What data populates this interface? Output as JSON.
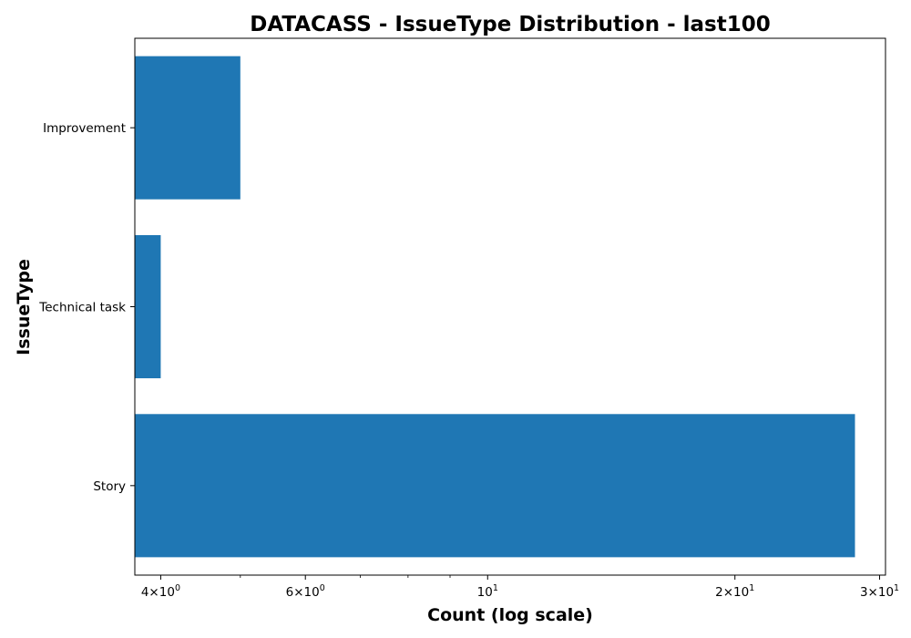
{
  "chart_data": {
    "type": "bar",
    "orientation": "horizontal",
    "title": "DATACASS - IssueType Distribution - last100",
    "xlabel": "Count (log scale)",
    "ylabel": "IssueType",
    "x_scale": "log",
    "xlim": [
      3.72,
      30.5
    ],
    "categories": [
      "Story",
      "Technical task",
      "Improvement"
    ],
    "values": [
      28,
      4,
      5
    ],
    "bar_color": "#1f77b4",
    "x_major_ticks": [
      {
        "value": 4,
        "base": "4",
        "sym": "×",
        "exp_base": "10",
        "exp": "0"
      },
      {
        "value": 6,
        "base": "6",
        "sym": "×",
        "exp_base": "10",
        "exp": "0"
      },
      {
        "value": 10,
        "base": "",
        "sym": "",
        "exp_base": "10",
        "exp": "1"
      },
      {
        "value": 20,
        "base": "2",
        "sym": "×",
        "exp_base": "10",
        "exp": "1"
      },
      {
        "value": 30,
        "base": "3",
        "sym": "×",
        "exp_base": "10",
        "exp": "1"
      }
    ],
    "x_minor_ticks": [
      5,
      7,
      8,
      9
    ],
    "grid": false,
    "legend": "none"
  }
}
